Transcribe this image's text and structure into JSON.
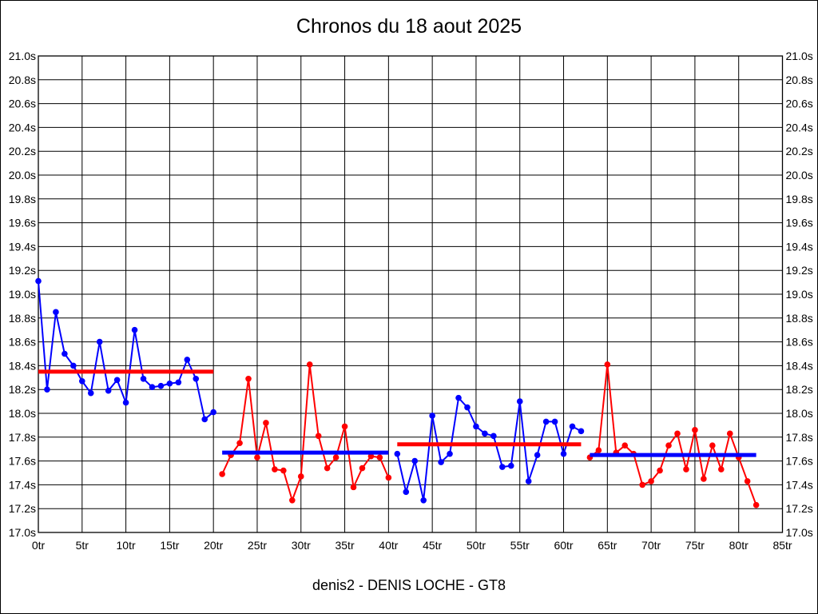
{
  "title": "Chronos du 18 aout 2025",
  "footer": "denis2 - DENIS LOCHE - GT8",
  "colors": {
    "blue": "#0000ff",
    "red": "#ff0000",
    "grid": "#000000",
    "background": "#ffffff"
  },
  "chart_data": {
    "type": "line",
    "title": "Chronos du 18 aout 2025",
    "subtitle": "denis2 - DENIS LOCHE - GT8",
    "x_axis": {
      "min": 0,
      "max": 85,
      "step": 5,
      "unit": "tr",
      "tick_labels": [
        "0tr",
        "5tr",
        "10tr",
        "15tr",
        "20tr",
        "25tr",
        "30tr",
        "35tr",
        "40tr",
        "45tr",
        "50tr",
        "55tr",
        "60tr",
        "65tr",
        "70tr",
        "75tr",
        "80tr",
        "85tr"
      ]
    },
    "y_axis": {
      "min": 17.0,
      "max": 21.0,
      "step": 0.2,
      "unit": "s",
      "labels_on_both_sides": true,
      "tick_labels": [
        "21.0s",
        "20.8s",
        "20.6s",
        "20.4s",
        "20.2s",
        "20.0s",
        "19.8s",
        "19.6s",
        "19.4s",
        "19.2s",
        "19.0s",
        "18.8s",
        "18.6s",
        "18.4s",
        "18.2s",
        "18.0s",
        "17.8s",
        "17.6s",
        "17.4s",
        "17.2s",
        "17.0s"
      ]
    },
    "grid": true,
    "legend": "none",
    "series": [
      {
        "name": "stint-1-laps",
        "color": "#0000ff",
        "start_lap": 0,
        "values": [
          19.11,
          18.2,
          18.85,
          18.5,
          18.4,
          18.27,
          18.17,
          18.6,
          18.19,
          18.28,
          18.09,
          18.7,
          18.29,
          18.22,
          18.23,
          18.25,
          18.26,
          18.45,
          18.29,
          17.95,
          18.01
        ],
        "avg_line": {
          "color": "#ff0000",
          "value": 18.35,
          "from_lap": 0,
          "to_lap": 20
        }
      },
      {
        "name": "stint-2-laps",
        "color": "#ff0000",
        "start_lap": 21,
        "values": [
          17.49,
          17.65,
          17.75,
          18.29,
          17.63,
          17.92,
          17.53,
          17.52,
          17.27,
          17.47,
          18.41,
          17.81,
          17.54,
          17.63,
          17.89,
          17.38,
          17.54,
          17.64,
          17.63,
          17.46
        ],
        "avg_line": {
          "color": "#0000ff",
          "value": 17.67,
          "from_lap": 21,
          "to_lap": 40
        }
      },
      {
        "name": "stint-3-laps",
        "color": "#0000ff",
        "start_lap": 41,
        "values": [
          17.66,
          17.34,
          17.6,
          17.27,
          17.98,
          17.59,
          17.66,
          18.13,
          18.05,
          17.89,
          17.83,
          17.81,
          17.55,
          17.56,
          18.1,
          17.43,
          17.65,
          17.93,
          17.93,
          17.66,
          17.89,
          17.85
        ],
        "avg_line": {
          "color": "#ff0000",
          "value": 17.74,
          "from_lap": 41,
          "to_lap": 62
        }
      },
      {
        "name": "stint-4-laps",
        "color": "#ff0000",
        "start_lap": 63,
        "values": [
          17.63,
          17.69,
          18.41,
          17.67,
          17.73,
          17.66,
          17.4,
          17.43,
          17.52,
          17.73,
          17.83,
          17.53,
          17.86,
          17.45,
          17.73,
          17.53,
          17.83,
          17.63,
          17.43,
          17.23
        ],
        "avg_line": {
          "color": "#0000ff",
          "value": 17.65,
          "from_lap": 63,
          "to_lap": 82
        }
      }
    ]
  }
}
